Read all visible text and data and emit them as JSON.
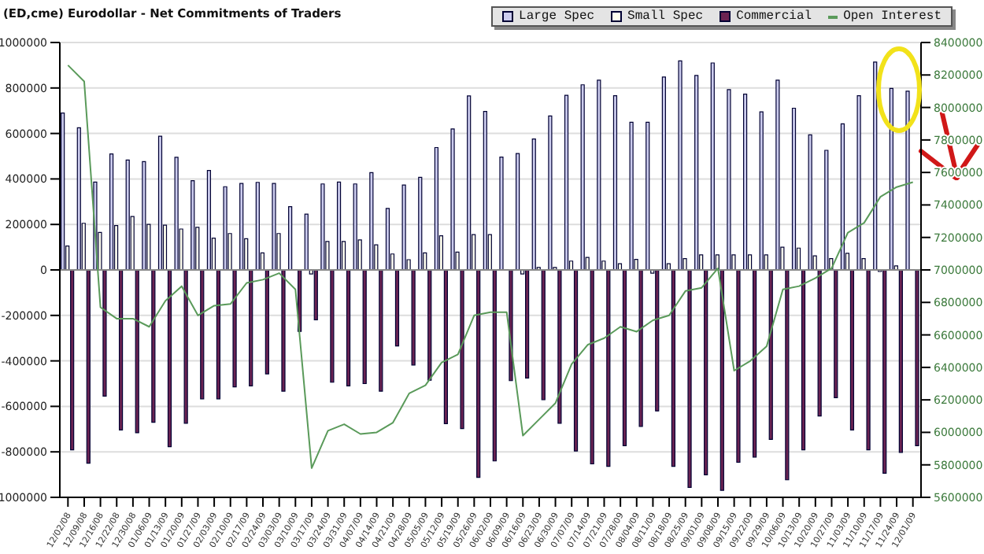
{
  "chart_data": {
    "type": "bar",
    "title": "(ED,cme) Eurodollar - Net Commitments of Traders",
    "categories": [
      "12/02/08",
      "12/09/08",
      "12/16/08",
      "12/22/08",
      "12/30/08",
      "01/06/09",
      "01/13/09",
      "01/20/09",
      "01/27/09",
      "02/03/09",
      "02/10/09",
      "02/17/09",
      "02/24/09",
      "03/03/09",
      "03/10/09",
      "03/17/09",
      "03/24/09",
      "03/31/09",
      "04/07/09",
      "04/14/09",
      "04/21/09",
      "04/28/09",
      "05/05/09",
      "05/12/09",
      "05/19/09",
      "05/26/09",
      "06/02/09",
      "06/09/09",
      "06/16/09",
      "06/23/09",
      "06/30/09",
      "07/07/09",
      "07/14/09",
      "07/21/09",
      "07/28/09",
      "08/04/09",
      "08/11/09",
      "08/18/09",
      "08/25/09",
      "09/01/09",
      "09/08/09",
      "09/15/09",
      "09/22/09",
      "09/29/09",
      "10/06/09",
      "10/13/09",
      "10/20/09",
      "10/27/09",
      "11/03/09",
      "11/10/09",
      "11/17/09",
      "11/24/09",
      "12/01/09"
    ],
    "series": [
      {
        "name": "Large Spec",
        "color": "#ccccee",
        "values": [
          690000,
          625000,
          386000,
          510000,
          483000,
          476000,
          588000,
          495000,
          392000,
          437000,
          366000,
          380000,
          385000,
          380000,
          278000,
          245000,
          378000,
          386000,
          378000,
          428000,
          270000,
          373000,
          407000,
          538000,
          620000,
          765000,
          697000,
          496000,
          512000,
          576000,
          677000,
          768000,
          814000,
          834000,
          766000,
          649000,
          649000,
          848000,
          919000,
          855000,
          910000,
          793000,
          773000,
          695000,
          834000,
          711000,
          594000,
          526000,
          642000,
          766000,
          914000,
          798000,
          786000
        ]
      },
      {
        "name": "Small Spec",
        "color": "#ffffee",
        "values": [
          105000,
          205000,
          165000,
          195000,
          235000,
          200000,
          197000,
          180000,
          187000,
          140000,
          160000,
          137000,
          75000,
          160000,
          0,
          -18000,
          125000,
          125000,
          132000,
          110000,
          70000,
          45000,
          75000,
          150000,
          78000,
          155000,
          155000,
          0,
          -18000,
          11000,
          11000,
          39000,
          55000,
          39000,
          27000,
          46000,
          -14000,
          27000,
          50000,
          66000,
          66000,
          66000,
          66000,
          66000,
          100000,
          96000,
          62000,
          50000,
          73000,
          50000,
          -7000,
          18000,
          0
        ]
      },
      {
        "name": "Commercial",
        "color": "#6b2352",
        "values": [
          -791000,
          -850000,
          -555000,
          -704000,
          -716000,
          -670000,
          -777000,
          -674000,
          -567000,
          -567000,
          -514000,
          -510000,
          -457000,
          -533000,
          -270000,
          -219000,
          -494000,
          -510000,
          -500000,
          -533000,
          -334000,
          -418000,
          -485000,
          -676000,
          -698000,
          -912000,
          -840000,
          -487000,
          -475000,
          -571000,
          -674000,
          -796000,
          -853000,
          -864000,
          -773000,
          -688000,
          -620000,
          -864000,
          -956000,
          -901000,
          -969000,
          -846000,
          -823000,
          -745000,
          -923000,
          -791000,
          -642000,
          -562000,
          -704000,
          -791000,
          -894000,
          -802000,
          -773000
        ]
      },
      {
        "name": "Open Interest",
        "type": "line",
        "axis": "y2",
        "color": "#5a9a5a",
        "values": [
          8260000,
          8160000,
          6770000,
          6700000,
          6700000,
          6650000,
          6810000,
          6900000,
          6720000,
          6780000,
          6790000,
          6920000,
          6940000,
          6980000,
          6880000,
          5780000,
          6010000,
          6050000,
          5990000,
          6000000,
          6060000,
          6240000,
          6290000,
          6430000,
          6480000,
          6720000,
          6740000,
          6740000,
          5980000,
          6080000,
          6180000,
          6420000,
          6540000,
          6580000,
          6650000,
          6620000,
          6690000,
          6720000,
          6870000,
          6890000,
          7010000,
          6380000,
          6440000,
          6530000,
          6880000,
          6900000,
          6950000,
          7010000,
          7230000,
          7290000,
          7450000,
          7510000,
          7540000
        ]
      }
    ],
    "ylim": [
      -1000000,
      1000000
    ],
    "yticks": [
      {
        "value": -1000000,
        "label": "1000000"
      },
      -800000,
      -600000,
      -400000,
      -200000,
      0,
      200000,
      400000,
      600000,
      800000,
      1000000
    ],
    "y2lim": [
      5600000,
      8400000
    ],
    "y2ticks": [
      5600000,
      5800000,
      6000000,
      6200000,
      6400000,
      6600000,
      6800000,
      7000000,
      7200000,
      7400000,
      7600000,
      7800000,
      8000000,
      8200000,
      8400000
    ],
    "grid": "y",
    "legend": "top right"
  }
}
